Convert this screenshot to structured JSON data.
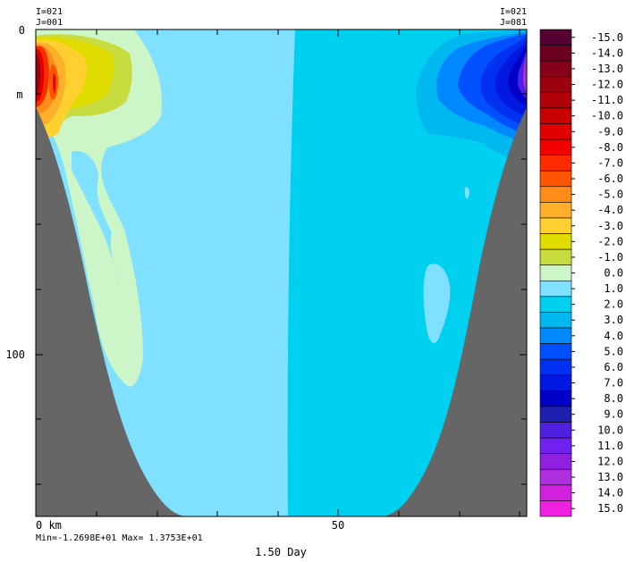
{
  "chart_data": {
    "type": "heatmap",
    "corner_labels": {
      "left_i": "I=021",
      "left_j": "J=001",
      "right_i": "I=021",
      "right_j": "J=081"
    },
    "y_axis": {
      "unit": "m",
      "ticks": [
        "0",
        "100"
      ],
      "tick_values": [
        0,
        100
      ],
      "range": [
        0,
        150
      ]
    },
    "x_axis": {
      "unit": "km",
      "ticks": [
        "0 km",
        "50"
      ],
      "tick_values": [
        0,
        50
      ],
      "range": [
        0,
        81
      ]
    },
    "stats": "Min=-1.2698E+01  Max= 1.3753E+01",
    "time_label": "1.50 Day",
    "colorbar": {
      "labels": [
        "-15.0",
        "-14.0",
        "-13.0",
        "-12.0",
        "-11.0",
        "-10.0",
        "-9.0",
        "-8.0",
        "-7.0",
        "-6.0",
        "-5.0",
        "-4.0",
        "-3.0",
        "-2.0",
        "-1.0",
        "0.0",
        "1.0",
        "2.0",
        "3.0",
        "4.0",
        "5.0",
        "6.0",
        "7.0",
        "8.0",
        "9.0",
        "10.0",
        "11.0",
        "12.0",
        "13.0",
        "14.0",
        "15.0"
      ],
      "colors": [
        "#550033",
        "#6b0020",
        "#850018",
        "#9a0010",
        "#b00008",
        "#c80000",
        "#e00000",
        "#f20000",
        "#ff2a00",
        "#ff5500",
        "#ff8c1a",
        "#ffb02a",
        "#ffd030",
        "#e0dc00",
        "#c8dc40",
        "#ccf5c8",
        "#80e0ff",
        "#00d0f0",
        "#00b8f0",
        "#0088ff",
        "#0050ff",
        "#0030f0",
        "#0018e0",
        "#0000c8",
        "#2020b0",
        "#5020e0",
        "#7020f0",
        "#9020e0",
        "#b030e0",
        "#d020e0",
        "#f020e0"
      ]
    },
    "bathymetry_color": "#666666"
  }
}
